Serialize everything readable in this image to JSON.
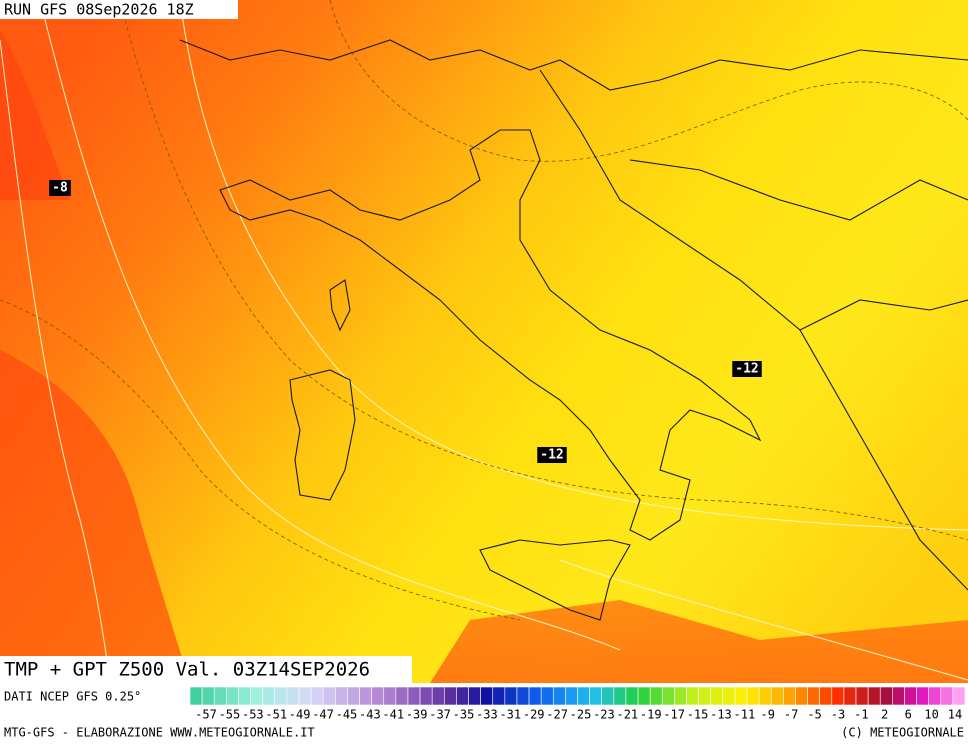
{
  "header": {
    "run": "RUN GFS 08Sep2026 18Z"
  },
  "contour_labels": [
    {
      "text": "-8"
    },
    {
      "text": "-12"
    },
    {
      "text": "-12"
    }
  ],
  "footer": {
    "title": "TMP + GPT Z500 Val. 03Z14SEP2026",
    "source": "DATI NCEP GFS 0.25°",
    "credit": "MTG-GFS - ELABORAZIONE WWW.METEOGIORNALE.IT",
    "copyright": "(C) METEOGIORNALE"
  },
  "colorbar": {
    "labels": [
      "-57",
      "-55",
      "-53",
      "-51",
      "-49",
      "-47",
      "-45",
      "-43",
      "-41",
      "-39",
      "-37",
      "-35",
      "-33",
      "-31",
      "-29",
      "-27",
      "-25",
      "-23",
      "-21",
      "-19",
      "-17",
      "-15",
      "-13",
      "-11",
      "-9",
      "-7",
      "-5",
      "-3",
      "-1",
      "2",
      "6",
      "10",
      "14"
    ]
  }
}
